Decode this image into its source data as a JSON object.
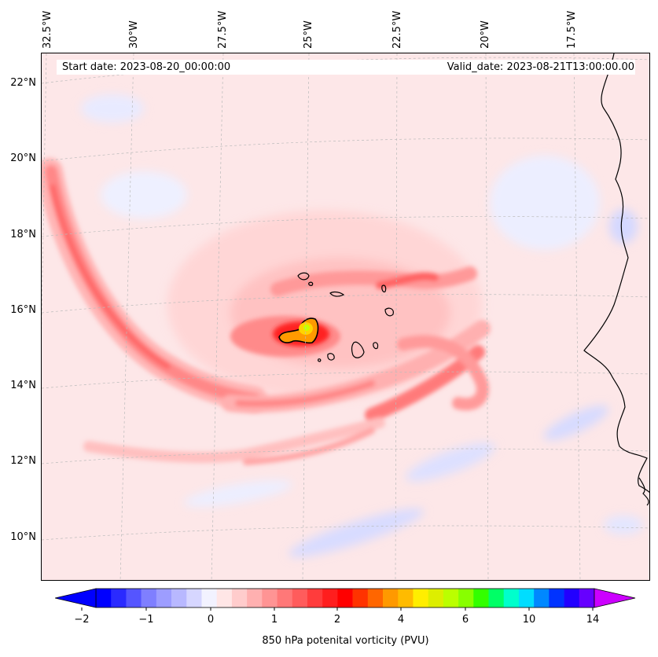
{
  "map": {
    "start_date": "Start date: 2023-08-20_00:00:00",
    "valid_date": "Valid_date: 2023-08-21T13:00:00.00",
    "lon_labels": [
      "32.5°W",
      "30°W",
      "27.5°W",
      "25°W",
      "22.5°W",
      "20°W",
      "17.5°W"
    ],
    "lat_labels": [
      "22°N",
      "20°N",
      "18°N",
      "16°N",
      "14°N",
      "12°N",
      "10°N"
    ],
    "gridlines": true,
    "coastlines": true,
    "field": "850 hPa potential vorticity",
    "colors": {
      "background_low_pv": "#fde7e8",
      "negative_pv": "#dde0ff",
      "band_light": "#ffc2c2",
      "band_mid": "#ff8c8c",
      "band_strong": "#ff5a5a",
      "core_high": "#ffd400",
      "core_peak": "#c8ff00"
    }
  },
  "colorbar": {
    "label": "850 hPa potenital vorticity (PVU)",
    "ticks": [
      "−2",
      "−1",
      "0",
      "1",
      "2",
      "4",
      "6",
      "10",
      "14"
    ],
    "extend": "both",
    "colors": [
      "#0000ff",
      "#2a2aff",
      "#5555ff",
      "#7f7fff",
      "#9d9dff",
      "#b8b8ff",
      "#d6d6ff",
      "#f2f2ff",
      "#ffe6e6",
      "#ffcccc",
      "#ffb0b0",
      "#ff9494",
      "#ff7878",
      "#ff5c5c",
      "#ff3c3c",
      "#ff1e1e",
      "#ff0000",
      "#ff3300",
      "#ff6600",
      "#ff9900",
      "#ffbb00",
      "#ffee00",
      "#ddee00",
      "#bbff00",
      "#88ff00",
      "#33ff00",
      "#00ff66",
      "#00ffcc",
      "#00ddff",
      "#0088ff",
      "#0033ff",
      "#2200ff",
      "#6600ff"
    ],
    "min_color": "#0000ff",
    "max_color": "#cc00ff"
  }
}
